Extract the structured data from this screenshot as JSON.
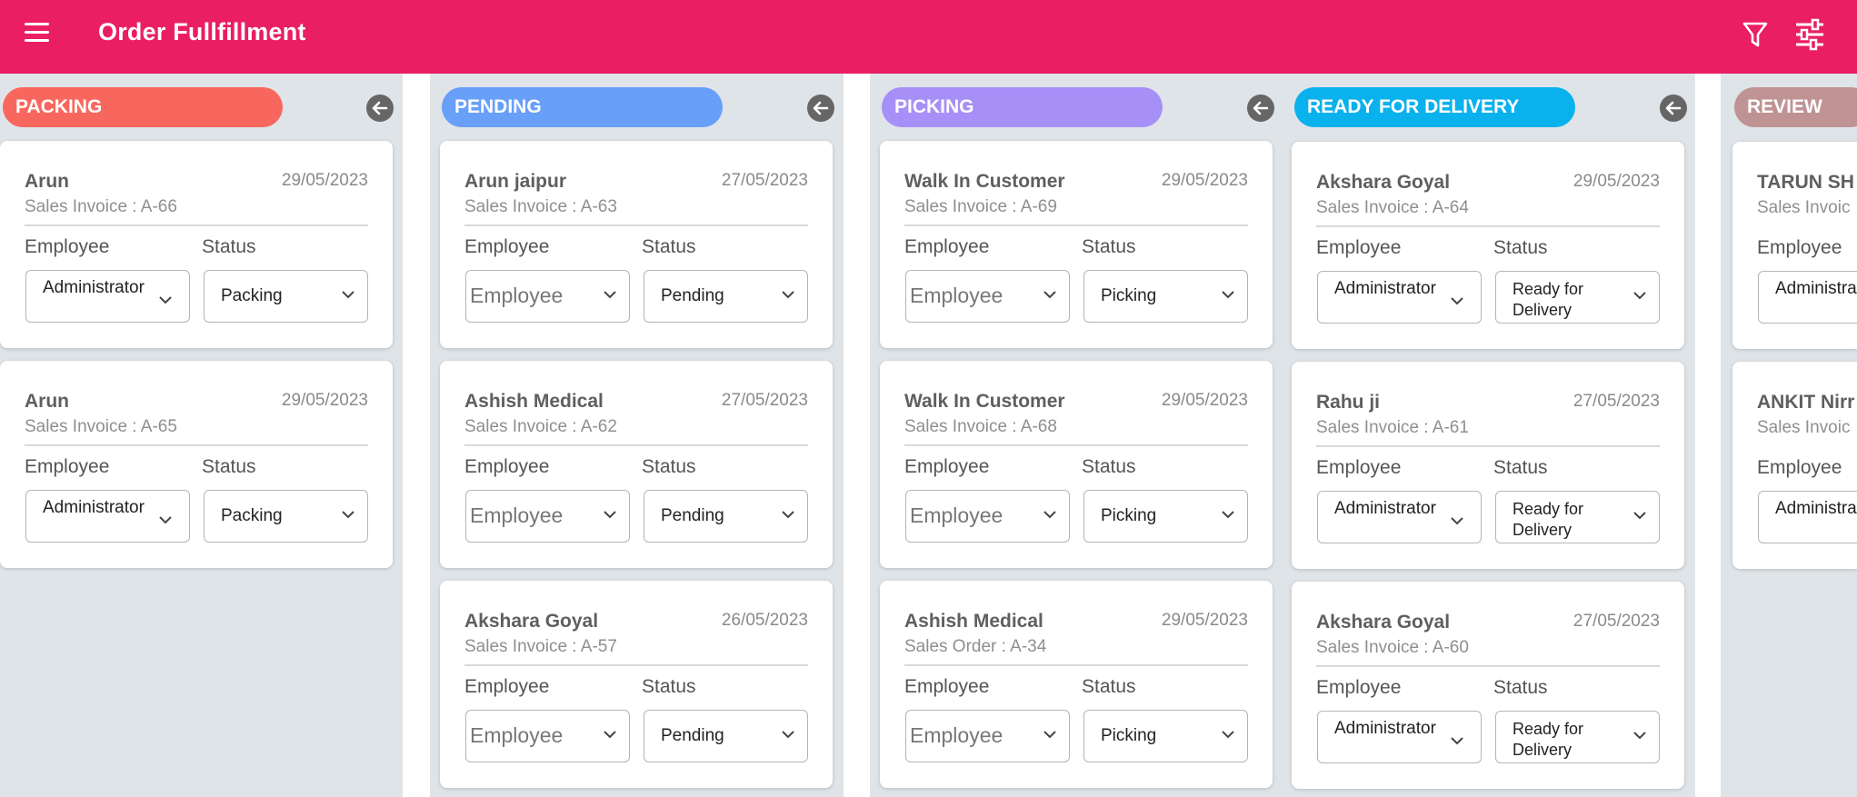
{
  "app": {
    "title": "Order Fullfillment"
  },
  "colors": {
    "appbar": "#ea1e63",
    "lane_bg": "#dfe4e8",
    "packing": "#f8675d",
    "pending": "#679ff9",
    "picking": "#a78ff8",
    "ready_for_delivery": "#09b1ed",
    "review": "#bf9393"
  },
  "icons": {
    "menu": "menu-icon",
    "filter": "filter-icon",
    "tune": "sliders-icon",
    "collapse": "arrow-left-circle-icon",
    "dropdown": "chevron-down-icon"
  },
  "labels": {
    "employee": "Employee",
    "status": "Status"
  },
  "lanes": [
    {
      "title": "PACKING",
      "cards": [
        {
          "name": "Arun",
          "date": "29/05/2023",
          "doc": "Sales Invoice : A-66",
          "employee": "Administrator",
          "status": "Packing"
        },
        {
          "name": "Arun",
          "date": "29/05/2023",
          "doc": "Sales Invoice : A-65",
          "employee": "Administrator",
          "status": "Packing"
        }
      ]
    },
    {
      "title": "PENDING",
      "cards": [
        {
          "name": "Arun jaipur",
          "date": "27/05/2023",
          "doc": "Sales Invoice : A-63",
          "employee": "Employee",
          "status": "Pending"
        },
        {
          "name": "Ashish Medical",
          "date": "27/05/2023",
          "doc": "Sales Invoice : A-62",
          "employee": "Employee",
          "status": "Pending"
        },
        {
          "name": "Akshara Goyal",
          "date": "26/05/2023",
          "doc": "Sales Invoice : A-57",
          "employee": "Employee",
          "status": "Pending"
        }
      ]
    },
    {
      "title": "PICKING",
      "cards": [
        {
          "name": "Walk In Customer",
          "date": "29/05/2023",
          "doc": "Sales Invoice : A-69",
          "employee": "Employee",
          "status": "Picking"
        },
        {
          "name": "Walk In Customer",
          "date": "29/05/2023",
          "doc": "Sales Invoice : A-68",
          "employee": "Employee",
          "status": "Picking"
        },
        {
          "name": "Ashish Medical",
          "date": "29/05/2023",
          "doc": "Sales Order : A-34",
          "employee": "Employee",
          "status": "Picking"
        }
      ]
    },
    {
      "title": "READY FOR DELIVERY",
      "cards": [
        {
          "name": "Akshara Goyal",
          "date": "29/05/2023",
          "doc": "Sales Invoice : A-64",
          "employee": "Administrator",
          "status_line1": "Ready for",
          "status_line2": "Delivery"
        },
        {
          "name": "Rahu ji",
          "date": "27/05/2023",
          "doc": "Sales Invoice : A-61",
          "employee": "Administrator",
          "status_line1": "Ready for",
          "status_line2": "Delivery"
        },
        {
          "name": "Akshara Goyal",
          "date": "27/05/2023",
          "doc": "Sales Invoice : A-60",
          "employee": "Administrator",
          "status_line1": "Ready for",
          "status_line2": "Delivery"
        }
      ]
    },
    {
      "title": "REVIEW",
      "cards": [
        {
          "name": "TARUN SH",
          "doc": "Sales Invoic",
          "employee": "Administra"
        },
        {
          "name": "ANKIT Nirr",
          "doc": "Sales Invoic",
          "employee": "Administra"
        }
      ]
    }
  ]
}
